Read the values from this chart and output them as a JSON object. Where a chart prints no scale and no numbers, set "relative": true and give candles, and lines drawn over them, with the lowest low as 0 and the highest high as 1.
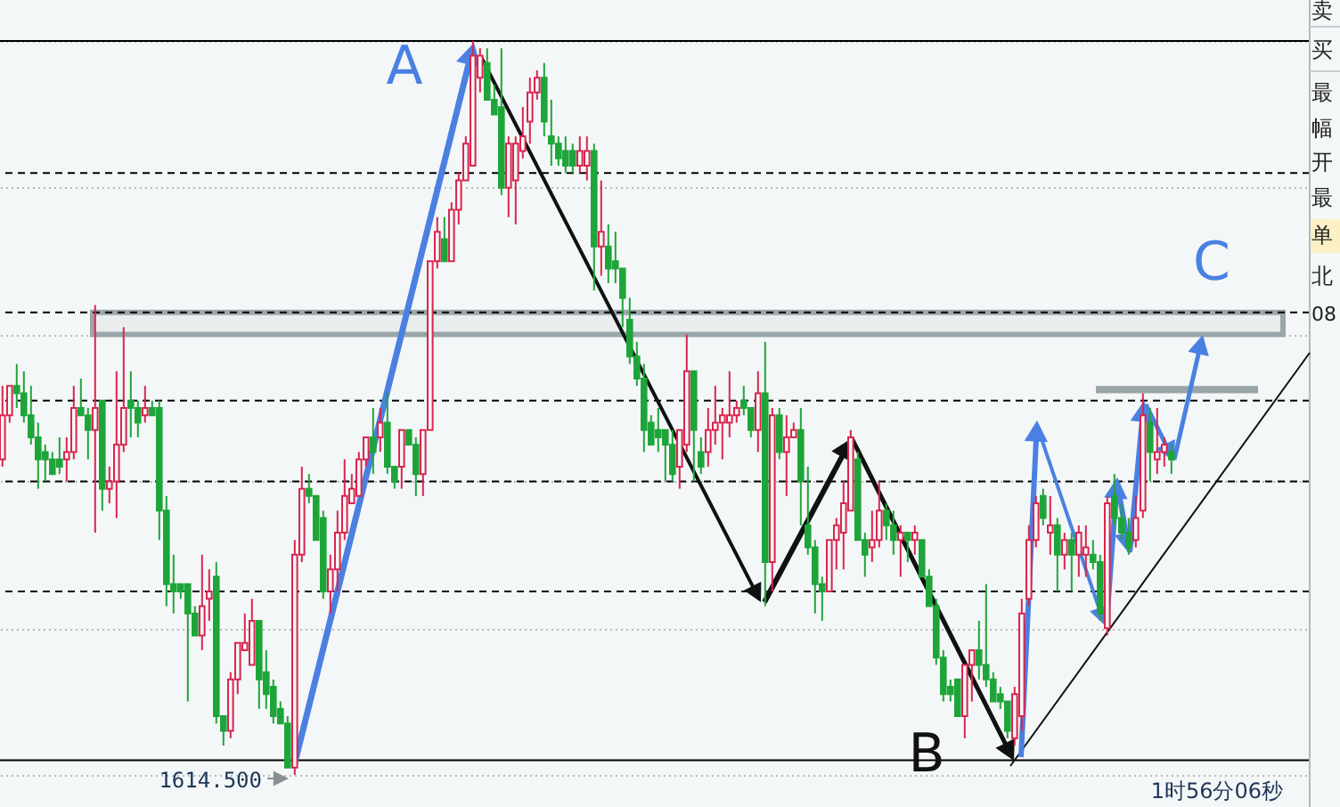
{
  "chart_data": {
    "type": "candlestick",
    "relative": true,
    "grid": "y",
    "categories": [
      null,
      null,
      null,
      null,
      null,
      null,
      null,
      null,
      null,
      null,
      null,
      null,
      null,
      null,
      null,
      null,
      null,
      null,
      null,
      null,
      null,
      null,
      null,
      null,
      null,
      null,
      null,
      null,
      null,
      null,
      null,
      null,
      null,
      null,
      null,
      null,
      null,
      null,
      null,
      null,
      null,
      null,
      null,
      null,
      null,
      null,
      null,
      null,
      null,
      null,
      null,
      null,
      null,
      null,
      null,
      null,
      null,
      null,
      null,
      null,
      null,
      null,
      null,
      null,
      null,
      null,
      null,
      null,
      null,
      null,
      null,
      null,
      null,
      null,
      null,
      null,
      null,
      null,
      null,
      null,
      null,
      null,
      null,
      null,
      null,
      null,
      null,
      null,
      null,
      null,
      null,
      null,
      null,
      null,
      null,
      null,
      null,
      null,
      null,
      null,
      null,
      null,
      null,
      null,
      null,
      null,
      null,
      null,
      null,
      null,
      null,
      null,
      null,
      null,
      null,
      null,
      null,
      null,
      null,
      null,
      null,
      null,
      null,
      null,
      null,
      null,
      null,
      null,
      null,
      null,
      null,
      null,
      null,
      null,
      null,
      null,
      null,
      null,
      null,
      null,
      null,
      null,
      null,
      null,
      null,
      null,
      null,
      null,
      null,
      null,
      null,
      null,
      null,
      null,
      null,
      null,
      null,
      null,
      null,
      null,
      null,
      null,
      null,
      null,
      null
    ],
    "ohlc": [
      [
        0.43,
        0.53,
        0.42,
        0.49
      ],
      [
        0.49,
        0.53,
        0.48,
        0.53
      ],
      [
        0.53,
        0.56,
        0.5,
        0.52
      ],
      [
        0.52,
        0.55,
        0.48,
        0.49
      ],
      [
        0.49,
        0.53,
        0.45,
        0.46
      ],
      [
        0.46,
        0.48,
        0.39,
        0.43
      ],
      [
        0.44,
        0.45,
        0.4,
        0.43
      ],
      [
        0.43,
        0.44,
        0.41,
        0.41
      ],
      [
        0.43,
        0.46,
        0.41,
        0.42
      ],
      [
        0.43,
        0.46,
        0.4,
        0.44
      ],
      [
        0.44,
        0.53,
        0.43,
        0.5
      ],
      [
        0.5,
        0.54,
        0.49,
        0.49
      ],
      [
        0.49,
        0.5,
        0.43,
        0.47
      ],
      [
        0.47,
        0.64,
        0.33,
        0.5
      ],
      [
        0.51,
        0.51,
        0.36,
        0.39
      ],
      [
        0.39,
        0.42,
        0.37,
        0.4
      ],
      [
        0.4,
        0.55,
        0.35,
        0.45
      ],
      [
        0.45,
        0.61,
        0.44,
        0.5
      ],
      [
        0.51,
        0.55,
        0.46,
        0.5
      ],
      [
        0.5,
        0.51,
        0.46,
        0.48
      ],
      [
        0.49,
        0.53,
        0.48,
        0.5
      ],
      [
        0.5,
        0.51,
        0.49,
        0.49
      ],
      [
        0.5,
        0.51,
        0.32,
        0.36
      ],
      [
        0.36,
        0.38,
        0.23,
        0.26
      ],
      [
        0.26,
        0.3,
        0.22,
        0.25
      ],
      [
        0.26,
        0.26,
        0.24,
        0.25
      ],
      [
        0.26,
        0.26,
        0.1,
        0.22
      ],
      [
        0.22,
        0.23,
        0.19,
        0.19
      ],
      [
        0.19,
        0.3,
        0.17,
        0.23
      ],
      [
        0.24,
        0.28,
        0.21,
        0.25
      ],
      [
        0.27,
        0.29,
        0.07,
        0.08
      ],
      [
        0.08,
        0.08,
        0.04,
        0.06
      ],
      [
        0.06,
        0.14,
        0.05,
        0.13
      ],
      [
        0.13,
        0.18,
        0.11,
        0.18
      ],
      [
        0.17,
        0.22,
        0.17,
        0.18
      ],
      [
        0.15,
        0.24,
        0.15,
        0.21
      ],
      [
        0.21,
        0.21,
        0.09,
        0.13
      ],
      [
        0.14,
        0.17,
        0.09,
        0.11
      ],
      [
        0.12,
        0.13,
        0.07,
        0.08
      ],
      [
        0.09,
        0.1,
        0.07,
        0.07
      ],
      [
        0.07,
        0.08,
        0.01,
        0.01
      ],
      [
        0.01,
        0.32,
        0,
        0.3
      ],
      [
        0.3,
        0.42,
        0.29,
        0.39
      ],
      [
        0.39,
        0.41,
        0.37,
        0.38
      ],
      [
        0.38,
        0.38,
        0.32,
        0.32
      ],
      [
        0.35,
        0.36,
        0.24,
        0.25
      ],
      [
        0.25,
        0.3,
        0.22,
        0.28
      ],
      [
        0.28,
        0.36,
        0.25,
        0.33
      ],
      [
        0.33,
        0.43,
        0.32,
        0.38
      ],
      [
        0.37,
        0.41,
        0.37,
        0.39
      ],
      [
        0.38,
        0.44,
        0.38,
        0.43
      ],
      [
        0.43,
        0.46,
        0.42,
        0.46
      ],
      [
        0.46,
        0.5,
        0.41,
        0.44
      ],
      [
        0.46,
        0.5,
        0.44,
        0.48
      ],
      [
        0.48,
        0.52,
        0.41,
        0.42
      ],
      [
        0.42,
        0.42,
        0.39,
        0.4
      ],
      [
        0.42,
        0.47,
        0.39,
        0.47
      ],
      [
        0.47,
        0.47,
        0.45,
        0.45
      ],
      [
        0.45,
        0.46,
        0.38,
        0.41
      ],
      [
        0.41,
        0.47,
        0.38,
        0.47
      ],
      [
        0.47,
        0.7,
        0.47,
        0.7
      ],
      [
        0.7,
        0.76,
        0.69,
        0.74
      ],
      [
        0.73,
        0.76,
        0.7,
        0.7
      ],
      [
        0.7,
        0.78,
        0.7,
        0.77
      ],
      [
        0.77,
        0.82,
        0.75,
        0.81
      ],
      [
        0.81,
        0.87,
        0.81,
        0.86
      ],
      [
        0.83,
        1.0,
        0.83,
        0.98
      ],
      [
        0.95,
        0.99,
        0.93,
        0.98
      ],
      [
        0.97,
        0.99,
        0.92,
        0.92
      ],
      [
        0.92,
        0.94,
        0.9,
        0.9
      ],
      [
        0.91,
        0.99,
        0.79,
        0.8
      ],
      [
        0.8,
        0.87,
        0.76,
        0.86
      ],
      [
        0.81,
        0.87,
        0.75,
        0.86
      ],
      [
        0.85,
        0.91,
        0.84,
        0.87
      ],
      [
        0.89,
        0.95,
        0.86,
        0.93
      ],
      [
        0.93,
        0.96,
        0.92,
        0.95
      ],
      [
        0.95,
        0.97,
        0.87,
        0.89
      ],
      [
        0.87,
        0.92,
        0.83,
        0.86
      ],
      [
        0.86,
        0.87,
        0.83,
        0.84
      ],
      [
        0.85,
        0.87,
        0.82,
        0.83
      ],
      [
        0.85,
        0.86,
        0.82,
        0.83
      ],
      [
        0.83,
        0.87,
        0.82,
        0.85
      ],
      [
        0.83,
        0.87,
        0.81,
        0.85
      ],
      [
        0.85,
        0.86,
        0.66,
        0.72
      ],
      [
        0.72,
        0.81,
        0.68,
        0.74
      ],
      [
        0.72,
        0.75,
        0.67,
        0.69
      ],
      [
        0.7,
        0.74,
        0.67,
        0.69
      ],
      [
        0.69,
        0.69,
        0.61,
        0.65
      ],
      [
        0.62,
        0.65,
        0.56,
        0.57
      ],
      [
        0.57,
        0.59,
        0.53,
        0.54
      ],
      [
        0.54,
        0.56,
        0.44,
        0.47
      ],
      [
        0.48,
        0.49,
        0.45,
        0.45
      ],
      [
        0.47,
        0.5,
        0.44,
        0.46
      ],
      [
        0.47,
        0.47,
        0.4,
        0.45
      ],
      [
        0.45,
        0.47,
        0.4,
        0.41
      ],
      [
        0.42,
        0.47,
        0.39,
        0.47
      ],
      [
        0.45,
        0.6,
        0.44,
        0.55
      ],
      [
        0.55,
        0.55,
        0.4,
        0.47
      ],
      [
        0.44,
        0.46,
        0.41,
        0.42
      ],
      [
        0.44,
        0.5,
        0.42,
        0.47
      ],
      [
        0.47,
        0.53,
        0.45,
        0.48
      ],
      [
        0.48,
        0.5,
        0.43,
        0.49
      ],
      [
        0.48,
        0.55,
        0.46,
        0.49
      ],
      [
        0.49,
        0.51,
        0.48,
        0.5
      ],
      [
        0.51,
        0.53,
        0.49,
        0.5
      ],
      [
        0.5,
        0.5,
        0.46,
        0.47
      ],
      [
        0.47,
        0.55,
        0.44,
        0.52
      ],
      [
        0.52,
        0.59,
        0.23,
        0.29
      ],
      [
        0.29,
        0.5,
        0.25,
        0.49
      ],
      [
        0.49,
        0.5,
        0.43,
        0.44
      ],
      [
        0.44,
        0.49,
        0.38,
        0.46
      ],
      [
        0.46,
        0.48,
        0.46,
        0.47
      ],
      [
        0.47,
        0.5,
        0.34,
        0.4
      ],
      [
        0.34,
        0.42,
        0.3,
        0.31
      ],
      [
        0.31,
        0.32,
        0.22,
        0.26
      ],
      [
        0.26,
        0.27,
        0.21,
        0.25
      ],
      [
        0.25,
        0.32,
        0.25,
        0.32
      ],
      [
        0.32,
        0.35,
        0.28,
        0.34
      ],
      [
        0.33,
        0.4,
        0.28,
        0.37
      ],
      [
        0.36,
        0.47,
        0.36,
        0.46
      ],
      [
        0.43,
        0.44,
        0.32,
        0.32
      ],
      [
        0.32,
        0.33,
        0.27,
        0.3
      ],
      [
        0.31,
        0.36,
        0.29,
        0.32
      ],
      [
        0.32,
        0.4,
        0.31,
        0.36
      ],
      [
        0.36,
        0.37,
        0.32,
        0.34
      ],
      [
        0.34,
        0.36,
        0.3,
        0.32
      ],
      [
        0.32,
        0.34,
        0.27,
        0.33
      ],
      [
        0.33,
        0.33,
        0.29,
        0.32
      ],
      [
        0.32,
        0.34,
        0.3,
        0.33
      ],
      [
        0.32,
        0.32,
        0.27,
        0.27
      ],
      [
        0.27,
        0.28,
        0.23,
        0.23
      ],
      [
        0.23,
        0.24,
        0.15,
        0.16
      ],
      [
        0.16,
        0.17,
        0.1,
        0.11
      ],
      [
        0.12,
        0.13,
        0.1,
        0.11
      ],
      [
        0.13,
        0.13,
        0.08,
        0.08
      ],
      [
        0.08,
        0.15,
        0.05,
        0.15
      ],
      [
        0.15,
        0.17,
        0.1,
        0.17
      ],
      [
        0.17,
        0.21,
        0.13,
        0.15
      ],
      [
        0.15,
        0.26,
        0.12,
        0.13
      ],
      [
        0.13,
        0.14,
        0.1,
        0.1
      ],
      [
        0.11,
        0.12,
        0.09,
        0.1
      ],
      [
        0.1,
        0.1,
        0.05,
        0.06
      ],
      [
        0.05,
        0.12,
        0.04,
        0.11
      ],
      [
        0.08,
        0.24,
        0.06,
        0.22
      ],
      [
        0.24,
        0.34,
        0.23,
        0.32
      ],
      [
        0.32,
        0.38,
        0.31,
        0.37
      ],
      [
        0.38,
        0.39,
        0.34,
        0.35
      ],
      [
        0.33,
        0.38,
        0.3,
        0.34
      ],
      [
        0.34,
        0.35,
        0.25,
        0.3
      ],
      [
        0.3,
        0.33,
        0.28,
        0.32
      ],
      [
        0.32,
        0.33,
        0.25,
        0.3
      ],
      [
        0.3,
        0.34,
        0.27,
        0.33
      ],
      [
        0.3,
        0.34,
        0.27,
        0.31
      ],
      [
        0.3,
        0.32,
        0.28,
        0.29
      ],
      [
        0.29,
        0.3,
        0.21,
        0.22
      ],
      [
        0.2,
        0.38,
        0.19,
        0.37
      ],
      [
        0.38,
        0.41,
        0.34,
        0.35
      ],
      [
        0.35,
        0.37,
        0.32,
        0.33
      ],
      [
        0.33,
        0.35,
        0.3,
        0.31
      ],
      [
        0.32,
        0.38,
        0.31,
        0.35
      ],
      [
        0.36,
        0.52,
        0.35,
        0.49
      ],
      [
        0.48,
        0.5,
        0.4,
        0.44
      ],
      [
        0.43,
        0.5,
        0.41,
        0.44
      ],
      [
        0.44,
        0.46,
        0.42,
        0.45
      ],
      [
        0.44,
        0.45,
        0.41,
        0.43
      ]
    ],
    "colors": [
      "#d9254f",
      "#d9254f",
      "#1ea53a",
      "#1ea53a",
      "#1ea53a",
      "#1ea53a",
      "#1ea53a",
      "#1ea53a",
      "#1ea53a",
      "#d9254f",
      "#d9254f",
      "#1ea53a",
      "#1ea53a",
      "#d9254f",
      "#1ea53a",
      "#d9254f",
      "#d9254f",
      "#d9254f",
      "#1ea53a",
      "#1ea53a",
      "#d9254f",
      "#1ea53a",
      "#1ea53a",
      "#1ea53a",
      "#1ea53a",
      "#1ea53a",
      "#1ea53a",
      "#1ea53a",
      "#d9254f",
      "#d9254f",
      "#1ea53a",
      "#1ea53a",
      "#d9254f",
      "#d9254f",
      "#d9254f",
      "#d9254f",
      "#1ea53a",
      "#1ea53a",
      "#1ea53a",
      "#1ea53a",
      "#1ea53a",
      "#d9254f",
      "#d9254f",
      "#1ea53a",
      "#1ea53a",
      "#1ea53a",
      "#d9254f",
      "#d9254f",
      "#d9254f",
      "#d9254f",
      "#d9254f",
      "#d9254f",
      "#1ea53a",
      "#d9254f",
      "#1ea53a",
      "#1ea53a",
      "#d9254f",
      "#1ea53a",
      "#1ea53a",
      "#d9254f",
      "#d9254f",
      "#d9254f",
      "#1ea53a",
      "#d9254f",
      "#d9254f",
      "#d9254f",
      "#d9254f",
      "#d9254f",
      "#1ea53a",
      "#1ea53a",
      "#1ea53a",
      "#d9254f",
      "#d9254f",
      "#d9254f",
      "#d9254f",
      "#d9254f",
      "#1ea53a",
      "#1ea53a",
      "#1ea53a",
      "#1ea53a",
      "#1ea53a",
      "#d9254f",
      "#d9254f",
      "#1ea53a",
      "#d9254f",
      "#1ea53a",
      "#1ea53a",
      "#1ea53a",
      "#1ea53a",
      "#1ea53a",
      "#1ea53a",
      "#1ea53a",
      "#1ea53a",
      "#1ea53a",
      "#1ea53a",
      "#d9254f",
      "#d9254f",
      "#1ea53a",
      "#1ea53a",
      "#d9254f",
      "#d9254f",
      "#d9254f",
      "#d9254f",
      "#d9254f",
      "#1ea53a",
      "#1ea53a",
      "#d9254f",
      "#1ea53a",
      "#d9254f",
      "#1ea53a",
      "#d9254f",
      "#d9254f",
      "#1ea53a",
      "#1ea53a",
      "#1ea53a",
      "#1ea53a",
      "#d9254f",
      "#d9254f",
      "#d9254f",
      "#d9254f",
      "#1ea53a",
      "#1ea53a",
      "#d9254f",
      "#d9254f",
      "#1ea53a",
      "#1ea53a",
      "#d9254f",
      "#1ea53a",
      "#d9254f",
      "#1ea53a",
      "#1ea53a",
      "#1ea53a",
      "#1ea53a",
      "#1ea53a",
      "#1ea53a",
      "#d9254f",
      "#d9254f",
      "#1ea53a",
      "#1ea53a",
      "#1ea53a",
      "#1ea53a",
      "#1ea53a",
      "#d9254f",
      "#d9254f",
      "#d9254f",
      "#d9254f",
      "#1ea53a",
      "#d9254f",
      "#1ea53a",
      "#d9254f",
      "#1ea53a",
      "#d9254f",
      "#d9254f",
      "#1ea53a",
      "#1ea53a",
      "#d9254f",
      "#1ea53a",
      "#1ea53a",
      "#1ea53a",
      "#d9254f",
      "#d9254f",
      "#1ea53a",
      "#d9254f",
      "#d9254f",
      "#1ea53a"
    ],
    "ref_lines": [
      {
        "axis": "y",
        "value": 1.0,
        "color": "#000000",
        "line_style": "solid"
      },
      {
        "axis": "y",
        "value": 0.82,
        "color": "#000000",
        "line_style": "dashed"
      },
      {
        "axis": "y",
        "value": 0.63,
        "color": "#000000",
        "line_style": "dashed"
      },
      {
        "axis": "y",
        "value": 0.51,
        "color": "#000000",
        "line_style": "dashed"
      },
      {
        "axis": "y",
        "value": 0.4,
        "color": "#000000",
        "line_style": "dashed"
      },
      {
        "axis": "y",
        "value": 0.25,
        "color": "#000000",
        "line_style": "dashed"
      },
      {
        "axis": "y",
        "value": 0.02,
        "color": "#000000",
        "line_style": "solid"
      }
    ],
    "bands": [
      {
        "axis": "y",
        "from": 0.6,
        "to": 0.63,
        "color": "#9aa6a9"
      },
      {
        "axis": "y",
        "from": 0.52,
        "to": 0.53,
        "color": "#9aa6a9"
      }
    ],
    "annotations": [
      "A",
      "B",
      "C",
      "1614.500",
      "1时56分06秒",
      "卖",
      "买",
      "最",
      "幅",
      "开",
      "最",
      "单",
      "北",
      "08"
    ]
  }
}
